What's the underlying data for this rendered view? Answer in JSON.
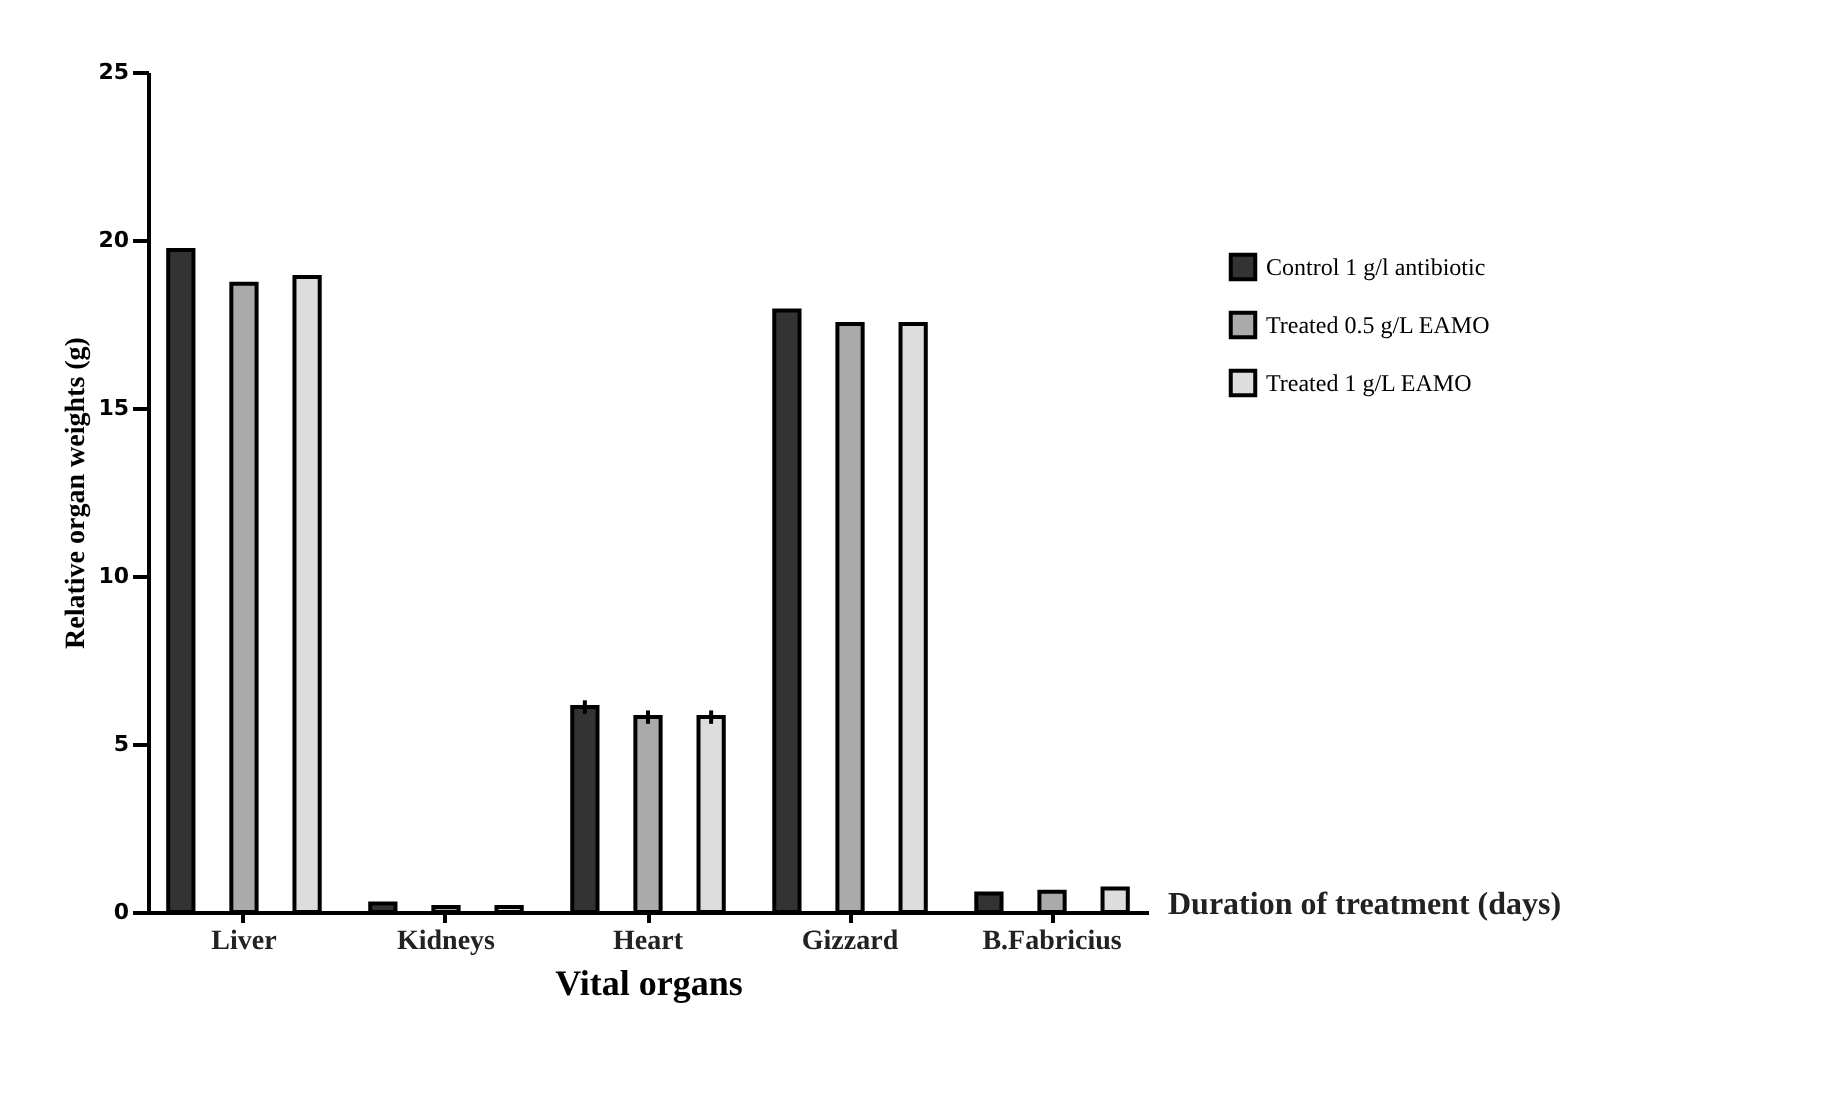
{
  "chart_data": {
    "type": "bar",
    "xlabel": "Vital organs",
    "ylabel": "Relative organ weights (g)",
    "categories": [
      "Liver",
      "Kidneys",
      "Heart",
      "Gizzard",
      "B.Fabricius"
    ],
    "series": [
      {
        "name": "Control 1 g/l antibiotic",
        "color": "#333333",
        "values": [
          19.7,
          0.25,
          6.1,
          17.9,
          0.55
        ],
        "errors": [
          null,
          null,
          0.2,
          null,
          null
        ]
      },
      {
        "name": "Treated 0.5 g/L EAMO",
        "color": "#aaaaaa",
        "values": [
          18.7,
          0.15,
          5.8,
          17.5,
          0.6
        ],
        "errors": [
          null,
          null,
          0.2,
          null,
          null
        ]
      },
      {
        "name": "Treated 1 g/L EAMO",
        "color": "#dddddd",
        "values": [
          18.9,
          0.15,
          5.8,
          17.5,
          0.7
        ],
        "errors": [
          null,
          null,
          0.2,
          null,
          null
        ]
      }
    ],
    "ylim": [
      0,
      25
    ],
    "yticks": [
      0,
      5,
      10,
      15,
      20,
      25
    ],
    "grid": false,
    "legend": "top right",
    "annotations": [
      "Duration of treatment (days)"
    ]
  }
}
